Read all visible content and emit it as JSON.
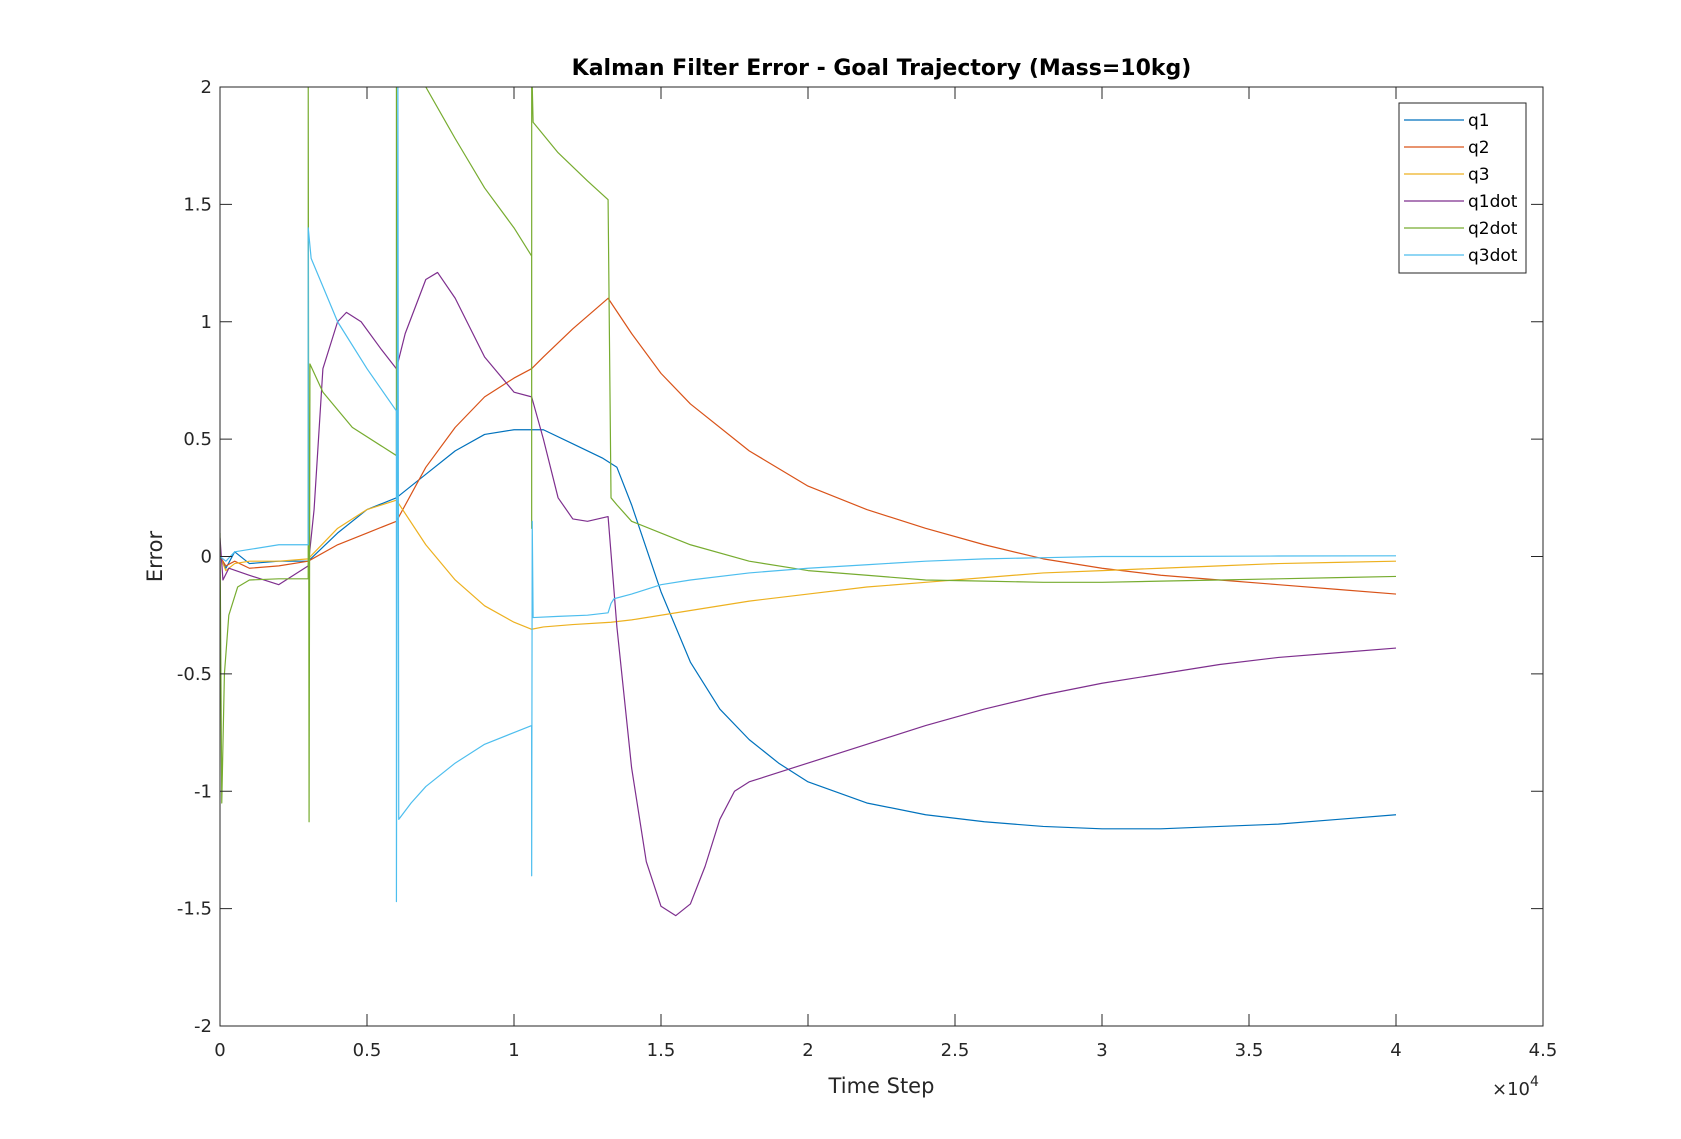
{
  "chart_data": {
    "type": "line",
    "title": "Kalman Filter Error - Goal Trajectory (Mass=10kg)",
    "xlabel": "Time Step",
    "ylabel": "Error",
    "x_exponent_label": "×10",
    "x_exponent_power": "4",
    "xlim": [
      0,
      45000
    ],
    "ylim": [
      -2,
      2
    ],
    "xtick_values": [
      0,
      5000,
      10000,
      15000,
      20000,
      25000,
      30000,
      35000,
      40000,
      45000
    ],
    "xtick_labels": [
      "0",
      "0.5",
      "1",
      "1.5",
      "2",
      "2.5",
      "3",
      "3.5",
      "4",
      "4.5"
    ],
    "ytick_values": [
      -2,
      -1.5,
      -1,
      -0.5,
      0,
      0.5,
      1,
      1.5,
      2
    ],
    "ytick_labels": [
      "-2",
      "-1.5",
      "-1",
      "-0.5",
      "0",
      "0.5",
      "1",
      "1.5",
      "2"
    ],
    "grid": false,
    "legend_position": "top-right",
    "series": [
      {
        "name": "q1",
        "color": "#0072BD",
        "points": [
          [
            0,
            0
          ],
          [
            200,
            -0.05
          ],
          [
            500,
            0.02
          ],
          [
            1000,
            -0.03
          ],
          [
            2000,
            -0.02
          ],
          [
            3000,
            -0.02
          ],
          [
            4000,
            0.1
          ],
          [
            5000,
            0.2
          ],
          [
            6000,
            0.25
          ],
          [
            7000,
            0.35
          ],
          [
            8000,
            0.45
          ],
          [
            9000,
            0.52
          ],
          [
            10000,
            0.54
          ],
          [
            10600,
            0.54
          ],
          [
            11000,
            0.54
          ],
          [
            12000,
            0.48
          ],
          [
            13000,
            0.42
          ],
          [
            13500,
            0.38
          ],
          [
            14000,
            0.22
          ],
          [
            15000,
            -0.15
          ],
          [
            16000,
            -0.45
          ],
          [
            17000,
            -0.65
          ],
          [
            18000,
            -0.78
          ],
          [
            19000,
            -0.88
          ],
          [
            20000,
            -0.96
          ],
          [
            22000,
            -1.05
          ],
          [
            24000,
            -1.1
          ],
          [
            26000,
            -1.13
          ],
          [
            28000,
            -1.15
          ],
          [
            30000,
            -1.16
          ],
          [
            32000,
            -1.16
          ],
          [
            34000,
            -1.15
          ],
          [
            36000,
            -1.14
          ],
          [
            38000,
            -1.12
          ],
          [
            40000,
            -1.1
          ]
        ]
      },
      {
        "name": "q2",
        "color": "#D95319",
        "points": [
          [
            0,
            0
          ],
          [
            200,
            -0.04
          ],
          [
            500,
            -0.02
          ],
          [
            1000,
            -0.05
          ],
          [
            2000,
            -0.04
          ],
          [
            3000,
            -0.02
          ],
          [
            4000,
            0.05
          ],
          [
            5000,
            0.1
          ],
          [
            6000,
            0.15
          ],
          [
            7000,
            0.38
          ],
          [
            8000,
            0.55
          ],
          [
            9000,
            0.68
          ],
          [
            10000,
            0.76
          ],
          [
            10600,
            0.8
          ],
          [
            11000,
            0.85
          ],
          [
            12000,
            0.97
          ],
          [
            13200,
            1.1
          ],
          [
            14000,
            0.95
          ],
          [
            15000,
            0.78
          ],
          [
            16000,
            0.65
          ],
          [
            18000,
            0.45
          ],
          [
            20000,
            0.3
          ],
          [
            22000,
            0.2
          ],
          [
            24000,
            0.12
          ],
          [
            26000,
            0.05
          ],
          [
            28000,
            -0.01
          ],
          [
            30000,
            -0.05
          ],
          [
            32000,
            -0.08
          ],
          [
            34000,
            -0.1
          ],
          [
            36000,
            -0.12
          ],
          [
            38000,
            -0.14
          ],
          [
            40000,
            -0.16
          ]
        ]
      },
      {
        "name": "q3",
        "color": "#EDB120",
        "points": [
          [
            0,
            0
          ],
          [
            200,
            -0.06
          ],
          [
            500,
            -0.03
          ],
          [
            1000,
            -0.02
          ],
          [
            2000,
            -0.02
          ],
          [
            3000,
            -0.01
          ],
          [
            4000,
            0.12
          ],
          [
            5000,
            0.2
          ],
          [
            6000,
            0.24
          ],
          [
            7000,
            0.05
          ],
          [
            8000,
            -0.1
          ],
          [
            9000,
            -0.21
          ],
          [
            10000,
            -0.28
          ],
          [
            10600,
            -0.31
          ],
          [
            11000,
            -0.3
          ],
          [
            12000,
            -0.29
          ],
          [
            13300,
            -0.28
          ],
          [
            14000,
            -0.27
          ],
          [
            16000,
            -0.23
          ],
          [
            18000,
            -0.19
          ],
          [
            20000,
            -0.16
          ],
          [
            22000,
            -0.13
          ],
          [
            24000,
            -0.11
          ],
          [
            26000,
            -0.09
          ],
          [
            28000,
            -0.07
          ],
          [
            30000,
            -0.06
          ],
          [
            32000,
            -0.05
          ],
          [
            34000,
            -0.04
          ],
          [
            36000,
            -0.03
          ],
          [
            38000,
            -0.025
          ],
          [
            40000,
            -0.02
          ]
        ]
      },
      {
        "name": "q1dot",
        "color": "#7E2F8E",
        "points": [
          [
            0,
            0.08
          ],
          [
            100,
            -0.1
          ],
          [
            300,
            -0.05
          ],
          [
            1000,
            -0.08
          ],
          [
            2000,
            -0.12
          ],
          [
            3000,
            -0.04
          ],
          [
            3200,
            0.2
          ],
          [
            3500,
            0.8
          ],
          [
            4000,
            1.0
          ],
          [
            4300,
            1.04
          ],
          [
            4800,
            1.0
          ],
          [
            5500,
            0.88
          ],
          [
            6000,
            0.8
          ],
          [
            6300,
            0.95
          ],
          [
            7000,
            1.18
          ],
          [
            7400,
            1.21
          ],
          [
            8000,
            1.1
          ],
          [
            9000,
            0.85
          ],
          [
            10000,
            0.7
          ],
          [
            10600,
            0.68
          ],
          [
            11000,
            0.5
          ],
          [
            11500,
            0.25
          ],
          [
            12000,
            0.16
          ],
          [
            12500,
            0.15
          ],
          [
            13200,
            0.17
          ],
          [
            13500,
            -0.3
          ],
          [
            14000,
            -0.9
          ],
          [
            14500,
            -1.3
          ],
          [
            15000,
            -1.49
          ],
          [
            15500,
            -1.53
          ],
          [
            16000,
            -1.48
          ],
          [
            16500,
            -1.32
          ],
          [
            17000,
            -1.12
          ],
          [
            17500,
            -1.0
          ],
          [
            18000,
            -0.96
          ],
          [
            19000,
            -0.92
          ],
          [
            20000,
            -0.88
          ],
          [
            22000,
            -0.8
          ],
          [
            24000,
            -0.72
          ],
          [
            26000,
            -0.65
          ],
          [
            28000,
            -0.59
          ],
          [
            30000,
            -0.54
          ],
          [
            32000,
            -0.5
          ],
          [
            34000,
            -0.46
          ],
          [
            36000,
            -0.43
          ],
          [
            38000,
            -0.41
          ],
          [
            40000,
            -0.39
          ]
        ]
      },
      {
        "name": "q2dot",
        "color": "#77AC30",
        "points": [
          [
            0,
            0.1
          ],
          [
            60,
            -1.05
          ],
          [
            150,
            -0.5
          ],
          [
            300,
            -0.25
          ],
          [
            600,
            -0.13
          ],
          [
            1000,
            -0.1
          ],
          [
            2000,
            -0.095
          ],
          [
            3000,
            -0.095
          ],
          [
            3001,
            2.0
          ],
          [
            3030,
            -1.13
          ],
          [
            3060,
            0.82
          ],
          [
            3500,
            0.7
          ],
          [
            4500,
            0.55
          ],
          [
            6000,
            0.43
          ],
          [
            6001,
            2.1
          ],
          [
            6600,
            2.1
          ],
          [
            7000,
            2.0
          ],
          [
            8000,
            1.78
          ],
          [
            9000,
            1.57
          ],
          [
            10000,
            1.4
          ],
          [
            10600,
            1.28
          ],
          [
            10601,
            0.12
          ],
          [
            10602,
            2.1
          ],
          [
            10650,
            1.85
          ],
          [
            11500,
            1.72
          ],
          [
            12500,
            1.6
          ],
          [
            13200,
            1.52
          ],
          [
            13300,
            0.25
          ],
          [
            13500,
            0.22
          ],
          [
            14000,
            0.15
          ],
          [
            15000,
            0.1
          ],
          [
            16000,
            0.05
          ],
          [
            18000,
            -0.02
          ],
          [
            20000,
            -0.06
          ],
          [
            22000,
            -0.08
          ],
          [
            24000,
            -0.1
          ],
          [
            26000,
            -0.105
          ],
          [
            28000,
            -0.11
          ],
          [
            30000,
            -0.11
          ],
          [
            32000,
            -0.105
          ],
          [
            34000,
            -0.1
          ],
          [
            36000,
            -0.095
          ],
          [
            38000,
            -0.09
          ],
          [
            40000,
            -0.085
          ]
        ]
      },
      {
        "name": "q3dot",
        "color": "#4DBEEE",
        "points": [
          [
            0,
            0
          ],
          [
            200,
            -0.02
          ],
          [
            500,
            0.02
          ],
          [
            1000,
            0.03
          ],
          [
            2000,
            0.05
          ],
          [
            3000,
            0.05
          ],
          [
            3001,
            1.4
          ],
          [
            3100,
            1.27
          ],
          [
            3500,
            1.15
          ],
          [
            4000,
            1.0
          ],
          [
            5000,
            0.8
          ],
          [
            6000,
            0.62
          ],
          [
            6001,
            -1.47
          ],
          [
            6050,
            2.1
          ],
          [
            6080,
            -1.12
          ],
          [
            6500,
            -1.05
          ],
          [
            7000,
            -0.98
          ],
          [
            8000,
            -0.88
          ],
          [
            9000,
            -0.8
          ],
          [
            10000,
            -0.75
          ],
          [
            10600,
            -0.72
          ],
          [
            10601,
            -1.36
          ],
          [
            10620,
            0.15
          ],
          [
            10650,
            -0.26
          ],
          [
            11500,
            -0.255
          ],
          [
            12500,
            -0.25
          ],
          [
            13200,
            -0.24
          ],
          [
            13300,
            -0.2
          ],
          [
            13400,
            -0.18
          ],
          [
            14000,
            -0.16
          ],
          [
            15000,
            -0.12
          ],
          [
            16000,
            -0.1
          ],
          [
            18000,
            -0.07
          ],
          [
            20000,
            -0.05
          ],
          [
            22000,
            -0.035
          ],
          [
            24000,
            -0.02
          ],
          [
            26000,
            -0.01
          ],
          [
            28000,
            -0.005
          ],
          [
            30000,
            0
          ],
          [
            32000,
            0
          ],
          [
            36000,
            0.002
          ],
          [
            40000,
            0.003
          ]
        ]
      }
    ]
  }
}
